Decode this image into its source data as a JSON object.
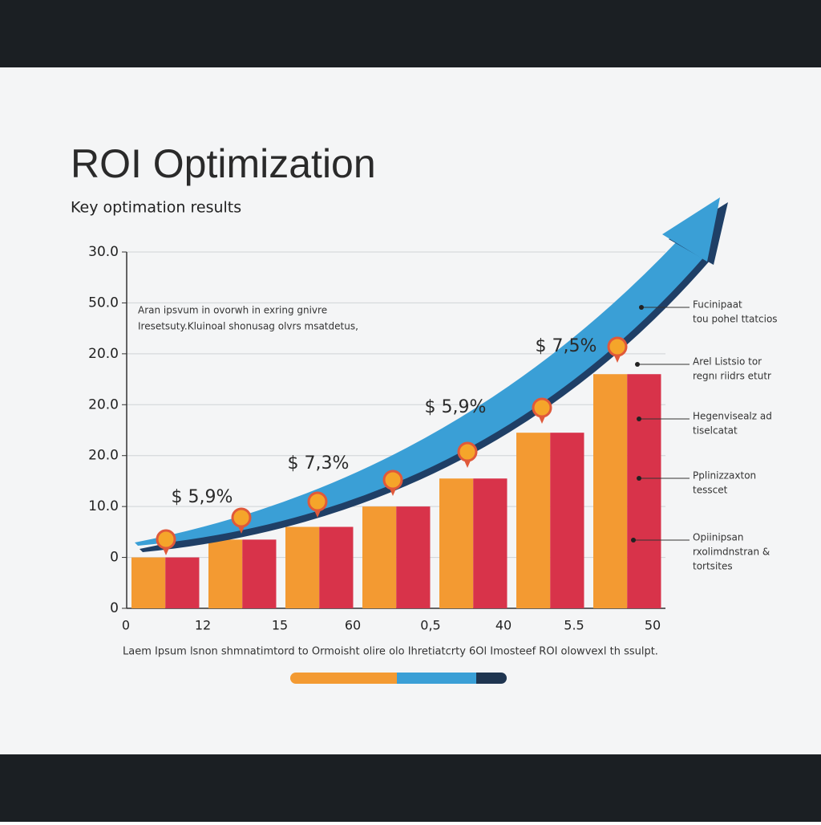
{
  "chart_data": {
    "type": "bar",
    "title": "ROI Optimization",
    "subtitle": "Key optimation results",
    "ylim": [
      0,
      7
    ],
    "yticks": [
      {
        "value": 0,
        "label": "0"
      },
      {
        "value": 1,
        "label": "0"
      },
      {
        "value": 2,
        "label": "10.0"
      },
      {
        "value": 3,
        "label": "20.0"
      },
      {
        "value": 4,
        "label": "20.0"
      },
      {
        "value": 5,
        "label": "20.0"
      },
      {
        "value": 6,
        "label": "50.0"
      },
      {
        "value": 7,
        "label": "30.0"
      }
    ],
    "grid": true,
    "x_labels": [
      "0",
      "12",
      "15",
      "60",
      "0,5",
      "40",
      "5.5",
      "50"
    ],
    "series": [
      {
        "color": "#f39a32",
        "values": [
          1.0,
          1.35,
          1.6,
          2.0,
          2.55,
          3.45,
          4.6
        ]
      },
      {
        "color": "#d8334a",
        "values": [
          1.0,
          1.35,
          1.6,
          2.0,
          2.55,
          3.45,
          4.6
        ]
      }
    ],
    "annotations": [
      "$ 5,9%",
      "$ 7,3%",
      "$ 5,9%",
      "$ 7,5%"
    ],
    "note": [
      "Aran ipsvum in ovorwh in exring gnivre",
      "Iresetsuty.Kluinoal shonusag olvrs msatdetus,"
    ],
    "callouts": [
      [
        "Fucinipaat",
        "tou pohel ttatcios"
      ],
      [
        "Arel Listsio tor",
        "regnı riidrs etutr"
      ],
      [
        "Hegenvisealz ad",
        "tiselcatat"
      ],
      [
        "Pplinizzaxton",
        "tesscet"
      ],
      [
        "Opiinipsan",
        "rxolimdnstran &",
        "tortsites"
      ]
    ],
    "footer": "Laem Ipsum lsnon  shmnatimtord to Ormoisht olire olo Ihretiatcrty 6Ol Imosteef ROI olowvexl th ssulpt."
  }
}
